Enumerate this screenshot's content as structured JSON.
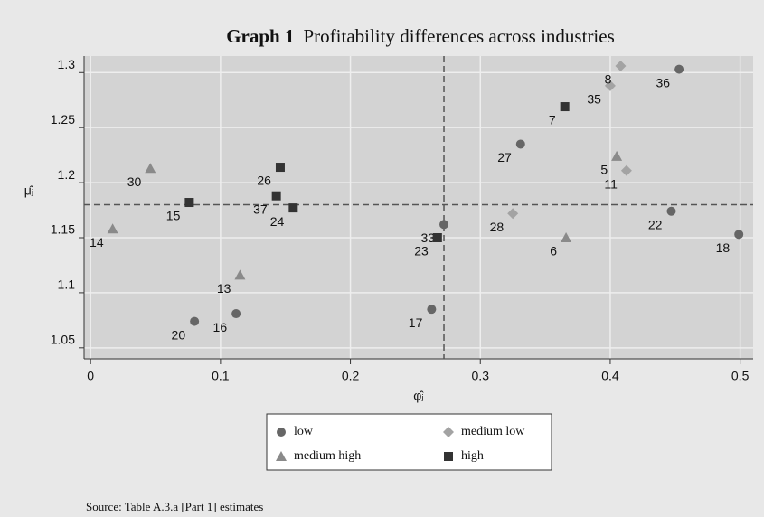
{
  "chart_data": {
    "type": "scatter",
    "title_number": "Graph 1",
    "title": "Profitability differences across industries",
    "xlabel": "φ̂ⱼ",
    "ylabel": "μ̂ⱼ",
    "xlim": [
      -0.005,
      0.51
    ],
    "ylim": [
      1.04,
      1.315
    ],
    "xticks": [
      0,
      0.1,
      0.2,
      0.3,
      0.4,
      0.5
    ],
    "yticks": [
      1.05,
      1.1,
      1.15,
      1.2,
      1.25,
      1.3
    ],
    "grid": true,
    "vline": 0.272,
    "hline": 1.18,
    "series": [
      {
        "name": "low",
        "color": "#666666",
        "marker": "circle",
        "x": [
          0.08,
          0.112,
          0.2625,
          0.272,
          0.331,
          0.453,
          0.447,
          0.499
        ],
        "values": [
          1.074,
          1.081,
          1.085,
          1.162,
          1.235,
          1.303,
          1.174,
          1.153
        ],
        "point_labels": [
          "20",
          "16",
          "17",
          "33",
          "27",
          "36",
          "22",
          "18"
        ]
      },
      {
        "name": "medium low",
        "color": "#a3a3a3",
        "marker": "diamond",
        "x": [
          0.325,
          0.4,
          0.408,
          0.4125
        ],
        "values": [
          1.172,
          1.288,
          1.306,
          1.211
        ],
        "point_labels": [
          "28",
          "35",
          "8",
          "11"
        ]
      },
      {
        "name": "medium high",
        "color": "#8a8a8a",
        "marker": "triangle",
        "x": [
          0.046,
          0.017,
          0.115,
          0.405,
          0.366
        ],
        "values": [
          1.213,
          1.158,
          1.116,
          1.224,
          1.15
        ],
        "point_labels": [
          "30",
          "14",
          "13",
          "5",
          "6"
        ]
      },
      {
        "name": "high",
        "color": "#333333",
        "marker": "square",
        "x": [
          0.076,
          0.146,
          0.143,
          0.156,
          0.267,
          0.365
        ],
        "values": [
          1.182,
          1.214,
          1.188,
          1.177,
          1.15,
          1.269
        ],
        "point_labels": [
          "15",
          "26",
          "37",
          "24",
          "23",
          "7"
        ]
      }
    ],
    "source": "Source: Table A.3.a [Part 1] estimates"
  }
}
